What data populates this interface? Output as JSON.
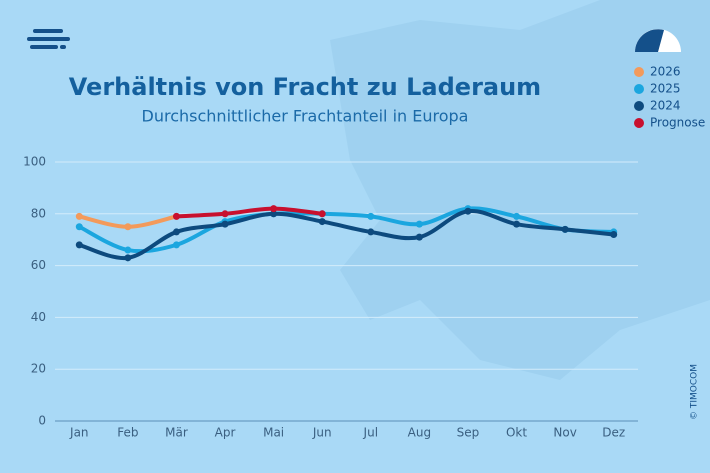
{
  "chart_data": {
    "type": "line",
    "title": "Verhältnis von Fracht zu Laderaum",
    "subtitle": "Durchschnittlicher Frachtanteil in Europa",
    "copyright": "© TIMOCOM",
    "categories": [
      "Jan",
      "Feb",
      "Mär",
      "Apr",
      "Mai",
      "Jun",
      "Jul",
      "Aug",
      "Sep",
      "Okt",
      "Nov",
      "Dez"
    ],
    "series": [
      {
        "name": "2026",
        "color": "#f39a5b",
        "values": [
          79,
          75,
          79,
          null,
          null,
          null,
          null,
          null,
          null,
          null,
          null,
          null
        ]
      },
      {
        "name": "2025",
        "color": "#1ba6df",
        "values": [
          75,
          66,
          68,
          77,
          80,
          80,
          79,
          76,
          82,
          79,
          74,
          73
        ]
      },
      {
        "name": "2024",
        "color": "#0d4a7e",
        "values": [
          68,
          63,
          73,
          76,
          80,
          77,
          73,
          71,
          81,
          76,
          74,
          72
        ]
      },
      {
        "name": "Prognose",
        "color": "#c8102e",
        "values": [
          null,
          null,
          79,
          80,
          82,
          80,
          null,
          null,
          null,
          null,
          null,
          null
        ]
      }
    ],
    "ylim": [
      0,
      100
    ],
    "yticks": [
      0,
      20,
      40,
      60,
      80,
      100
    ],
    "grid": true
  }
}
